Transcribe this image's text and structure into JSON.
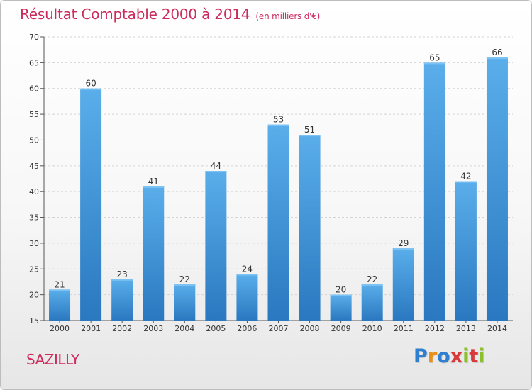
{
  "chart_data": {
    "type": "bar",
    "title": "Résultat Comptable 2000 à 2014",
    "subtitle": "(en milliers d'€)",
    "xlabel": "",
    "ylabel": "",
    "categories": [
      "2000",
      "2001",
      "2002",
      "2003",
      "2004",
      "2005",
      "2006",
      "2007",
      "2008",
      "2009",
      "2010",
      "2011",
      "2012",
      "2013",
      "2014"
    ],
    "values": [
      21,
      60,
      23,
      41,
      22,
      44,
      24,
      53,
      51,
      20,
      22,
      29,
      65,
      42,
      66
    ],
    "ylim": [
      15,
      70
    ],
    "yticks": [
      15,
      20,
      25,
      30,
      35,
      40,
      45,
      50,
      55,
      60,
      65,
      70
    ],
    "grid": true,
    "legend": "none",
    "bar_color": "#3a8fd4"
  },
  "footer": {
    "commune": "SAZILLY",
    "brand": "Proxiti",
    "brand_colors": [
      "#2f7fd0",
      "#e8901a",
      "#2f7fd0",
      "#d83a3a",
      "#8bbf2c",
      "#d83a3a",
      "#8bbf2c"
    ]
  }
}
